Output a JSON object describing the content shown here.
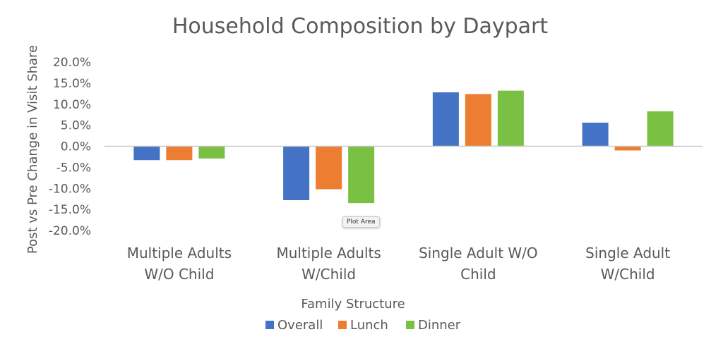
{
  "chart_data": {
    "type": "bar",
    "title": "Household Composition by Daypart",
    "xlabel": "Family Structure",
    "ylabel": "Post vs Pre Change in Visit Share",
    "ylim": [
      -0.2,
      0.2
    ],
    "yticks": [
      "20.0%",
      "15.0%",
      "10.0%",
      "5.0%",
      "0.0%",
      "-5.0%",
      "-10.0%",
      "-15.0%",
      "-20.0%"
    ],
    "categories": [
      [
        "Multiple Adults",
        "W/O Child"
      ],
      [
        "Multiple Adults",
        "W/Child"
      ],
      [
        "Single Adult W/O",
        "Child"
      ],
      [
        "Single Adult",
        "W/Child"
      ]
    ],
    "series": [
      {
        "name": "Overall",
        "color": "#4472c4",
        "values": [
          -0.033,
          -0.128,
          0.128,
          0.056
        ]
      },
      {
        "name": "Lunch",
        "color": "#ed7d31",
        "values": [
          -0.033,
          -0.102,
          0.124,
          -0.01
        ]
      },
      {
        "name": "Dinner",
        "color": "#7ac143",
        "values": [
          -0.029,
          -0.135,
          0.132,
          0.083
        ]
      }
    ],
    "grid": false,
    "legend": "bottom"
  },
  "tooltip": "Plot Area"
}
